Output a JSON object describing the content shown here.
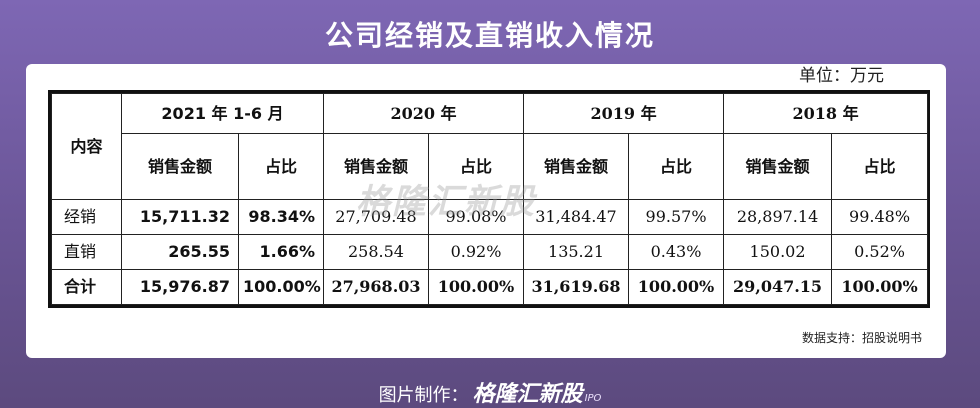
{
  "title": "公司经销及直销收入情况",
  "unit": "单位：万元",
  "table": {
    "row_header_label": "内容",
    "periods": [
      "2021 年 1-6 月",
      "2020 年",
      "2019 年",
      "2018 年"
    ],
    "sub_headers": {
      "p1_sales": "销售金额",
      "p1_ratio": "占比",
      "p2_sales": "销售金额",
      "p2_ratio": "占比",
      "p3_sales": "销售金额",
      "p3_ratio": "占比",
      "p4_sales": "销售金额",
      "p4_ratio": "占比"
    },
    "rows": [
      {
        "label": "经销",
        "cells": [
          "15,711.32",
          "98.34%",
          "27,709.48",
          "99.08%",
          "31,484.47",
          "99.57%",
          "28,897.14",
          "99.48%"
        ]
      },
      {
        "label": "直销",
        "cells": [
          "265.55",
          "1.66%",
          "258.54",
          "0.92%",
          "135.21",
          "0.43%",
          "150.02",
          "0.52%"
        ]
      },
      {
        "label": "合计",
        "cells": [
          "15,976.87",
          "100.00%",
          "27,968.03",
          "100.00%",
          "31,619.68",
          "100.00%",
          "29,047.15",
          "100.00%"
        ]
      }
    ]
  },
  "watermark": "格隆汇新股",
  "source": "数据支持：招股说明书",
  "footer": {
    "label": "图片制作：",
    "brand": "格隆汇新股",
    "brand_suffix": "IPO"
  }
}
